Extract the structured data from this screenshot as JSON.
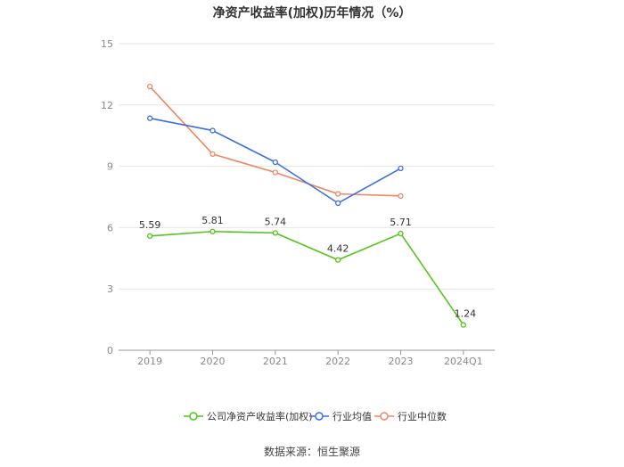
{
  "title": "净资产收益率(加权)历年情况（%）",
  "source": "数据来源：恒生聚源",
  "colors": {
    "company": "#52c41a",
    "avg": "#3b6fe0",
    "median": "#f08660",
    "grid": "#e6e6e6",
    "axis": "#999999",
    "tick_text": "#888888",
    "label_text": "#333333"
  },
  "chart_data": {
    "type": "line",
    "categories": [
      "2019",
      "2020",
      "2021",
      "2022",
      "2023",
      "2024Q1"
    ],
    "y_ticks": [
      0,
      3,
      6,
      9,
      12,
      15
    ],
    "ylim": [
      0,
      15
    ],
    "grid": true,
    "legend_position": "bottom",
    "series": [
      {
        "name": "公司净资产收益率(加权)",
        "key": "company",
        "values": [
          5.59,
          5.81,
          5.74,
          4.42,
          5.71,
          1.24
        ],
        "labels": [
          "5.59",
          "5.81",
          "5.74",
          "4.42",
          "5.71",
          "1.24"
        ]
      },
      {
        "name": "行业均值",
        "key": "avg",
        "values": [
          11.35,
          10.75,
          9.2,
          7.2,
          8.9,
          null
        ]
      },
      {
        "name": "行业中位数",
        "key": "median",
        "values": [
          12.9,
          9.6,
          8.7,
          7.65,
          7.55,
          null
        ]
      }
    ]
  }
}
